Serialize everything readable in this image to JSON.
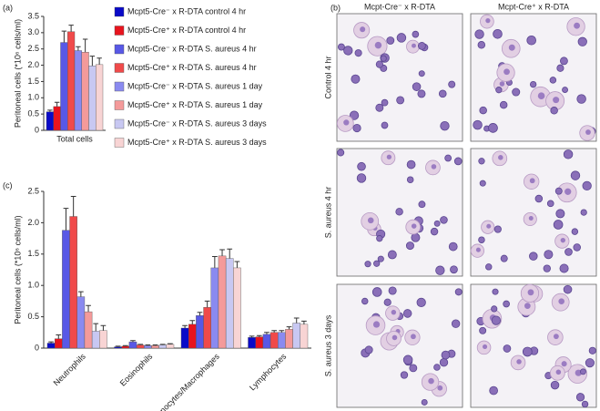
{
  "chart_data": [
    {
      "type": "bar",
      "ylabel": "Peritoneal cells (*10⁶ cells/ml)",
      "categories": [
        "Total cells"
      ],
      "ylim": [
        0,
        3.5
      ],
      "yticks": [
        0,
        0.5,
        {
          "value": 1,
          "label": "1.0"
        },
        1.5,
        {
          "value": 2,
          "label": "2.0"
        },
        2.5,
        {
          "value": 3,
          "label": "3.0"
        },
        3.5
      ],
      "series": [
        {
          "name": "Mcpt5-Cre⁻ x R-DTA control 4 hr",
          "color": "#0a0ac8",
          "values": [
            0.57
          ],
          "errors": [
            0.05
          ]
        },
        {
          "name": "Mcpt5-Cre⁺ x R-DTA control 4 hr",
          "color": "#e8141e",
          "values": [
            0.73
          ],
          "errors": [
            0.13
          ]
        },
        {
          "name": "Mcpt5-Cre⁻ x R-DTA S. aureus 4 hr",
          "color": "#5858e6",
          "values": [
            2.7
          ],
          "errors": [
            0.35
          ]
        },
        {
          "name": "Mcpt5-Cre⁺ x R-DTA S. aureus 4 hr",
          "color": "#f04a4a",
          "values": [
            3.03
          ],
          "errors": [
            0.2
          ]
        },
        {
          "name": "Mcpt5-Cre⁻ x R-DTA S. aureus 1 day",
          "color": "#8a8af0",
          "values": [
            2.45
          ],
          "errors": [
            0.12
          ]
        },
        {
          "name": "Mcpt5-Cre⁺ x R-DTA S. aureus 1 day",
          "color": "#f49a9a",
          "values": [
            2.4
          ],
          "errors": [
            0.4
          ]
        },
        {
          "name": "Mcpt5-Cre⁻ x R-DTA S. aureus 3 days",
          "color": "#c8c8f2",
          "values": [
            1.98
          ],
          "errors": [
            0.3
          ]
        },
        {
          "name": "Mcpt5-Cre⁺ x R-DTA S. aureus 3 days",
          "color": "#f8d4d4",
          "values": [
            2.02
          ],
          "errors": [
            0.2
          ]
        }
      ]
    },
    {
      "type": "bar",
      "ylabel": "Peritoneal cells (*10⁶ cells/ml)",
      "categories": [
        "Neutrophils",
        "Eosinophils",
        "Monocytes/Macrophages",
        "Lymphocytes"
      ],
      "ylim": [
        0,
        2.5
      ],
      "yticks": [
        0,
        0.5,
        {
          "value": 1,
          "label": "1.0"
        },
        1.5,
        {
          "value": 2,
          "label": "2.0"
        },
        2.5
      ],
      "series": [
        {
          "color": "#0a0ac8",
          "values": [
            0.08,
            0.02,
            0.32,
            0.17
          ],
          "errors": [
            0.02,
            0.01,
            0.04,
            0.02
          ]
        },
        {
          "color": "#e8141e",
          "values": [
            0.15,
            0.03,
            0.38,
            0.18
          ],
          "errors": [
            0.06,
            0.01,
            0.06,
            0.02
          ]
        },
        {
          "color": "#5858e6",
          "values": [
            1.88,
            0.1,
            0.52,
            0.22
          ],
          "errors": [
            0.35,
            0.02,
            0.05,
            0.03
          ]
        },
        {
          "color": "#f04a4a",
          "values": [
            2.1,
            0.05,
            0.65,
            0.25
          ],
          "errors": [
            0.32,
            0.01,
            0.1,
            0.03
          ]
        },
        {
          "color": "#8a8af0",
          "values": [
            0.82,
            0.04,
            1.28,
            0.25
          ],
          "errors": [
            0.08,
            0.01,
            0.18,
            0.03
          ]
        },
        {
          "color": "#f49a9a",
          "values": [
            0.58,
            0.04,
            1.47,
            0.3
          ],
          "errors": [
            0.1,
            0.01,
            0.1,
            0.04
          ]
        },
        {
          "color": "#c8c8f2",
          "values": [
            0.27,
            0.05,
            1.43,
            0.4
          ],
          "errors": [
            0.12,
            0.01,
            0.15,
            0.08
          ]
        },
        {
          "color": "#f8d4d4",
          "values": [
            0.28,
            0.06,
            1.28,
            0.38
          ],
          "errors": [
            0.08,
            0.01,
            0.1,
            0.05
          ]
        }
      ]
    }
  ],
  "panel_labels": [
    "(a)",
    "(b)",
    "(c)"
  ],
  "micrographs": {
    "columns": [
      "Mcpt-Cre⁻ x R-DTA",
      "Mcpt-Cre⁺ x R-DTA"
    ],
    "rows": [
      "Control 4 hr",
      "S. aureus 4 hr",
      "S. aureus 3 days"
    ]
  }
}
